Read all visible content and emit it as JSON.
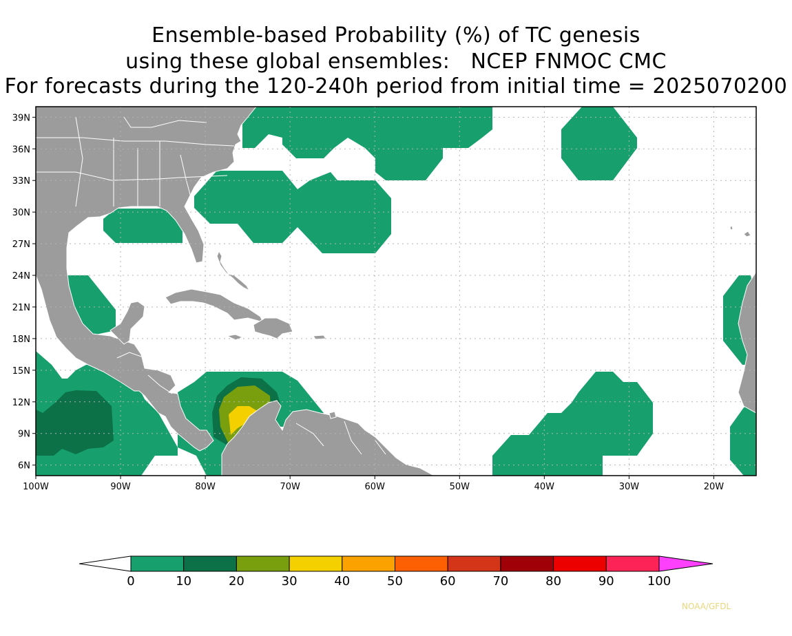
{
  "title": {
    "line1": "Ensemble-based Probability (%) of TC genesis",
    "line2": "using these global ensembles:   NCEP FNMOC CMC",
    "line3": "For forecasts during the 120-240h period from initial time = 2025070200"
  },
  "map": {
    "lon_range": [
      -100,
      -15
    ],
    "lat_range": [
      5,
      40
    ],
    "lon_ticks": [
      "100W",
      "90W",
      "80W",
      "70W",
      "60W",
      "50W",
      "40W",
      "30W",
      "20W"
    ],
    "lat_ticks": [
      "39N",
      "36N",
      "33N",
      "30N",
      "27N",
      "24N",
      "21N",
      "18N",
      "15N",
      "12N",
      "9N",
      "6N"
    ],
    "grid": true,
    "land_color": "#9c9c9c",
    "ocean_color": "#ffffff"
  },
  "colorbar": {
    "labels": [
      "0",
      "10",
      "20",
      "30",
      "40",
      "50",
      "60",
      "70",
      "80",
      "90",
      "100"
    ],
    "colors": [
      "#17a06e",
      "#0c7146",
      "#799e0e",
      "#f5d000",
      "#fba200",
      "#fd6003",
      "#d43418",
      "#a00007",
      "#ec0000",
      "#fd2356"
    ],
    "under_color": "#ffffff",
    "over_color": "#fc40fc"
  },
  "credit": "NOAA/GFDL"
}
